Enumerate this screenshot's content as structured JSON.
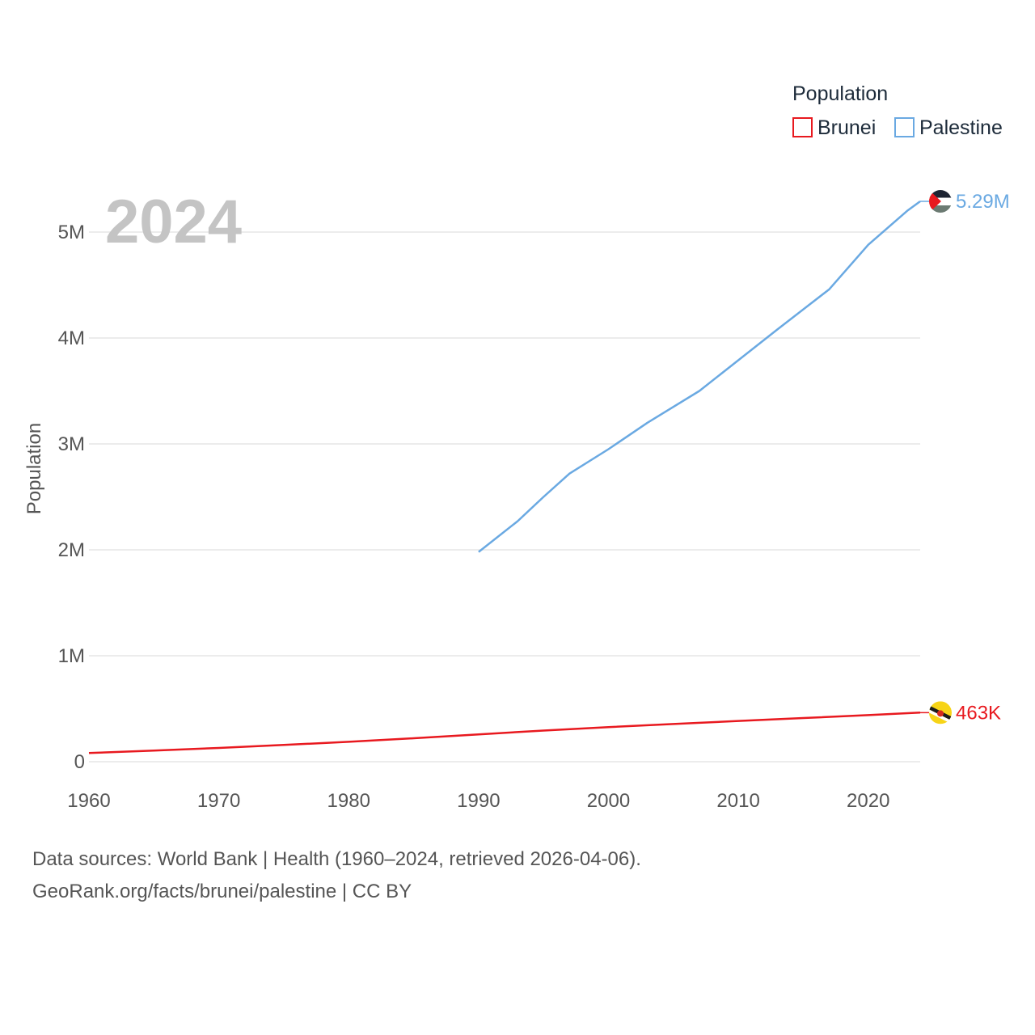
{
  "chart_data": {
    "type": "line",
    "highlight_year": "2024",
    "xlabel": "",
    "ylabel": "Population",
    "xlim": [
      1960,
      2024
    ],
    "ylim": [
      0,
      5000000
    ],
    "x_ticks": [
      1960,
      1970,
      1980,
      1990,
      2000,
      2010,
      2020
    ],
    "x_tick_labels": [
      "1960",
      "1970",
      "1980",
      "1990",
      "2000",
      "2010",
      "2020"
    ],
    "y_ticks": [
      0,
      1000000,
      2000000,
      3000000,
      4000000,
      5000000
    ],
    "y_tick_labels": [
      "0",
      "1M",
      "2M",
      "3M",
      "4M",
      "5M"
    ],
    "legend": {
      "title": "Population",
      "position": "top-right"
    },
    "series": [
      {
        "name": "Brunei",
        "color": "#e8191f",
        "end_label": "463K",
        "flag_icon": "brunei-flag-icon",
        "x": [
          1960,
          1965,
          1970,
          1975,
          1980,
          1985,
          1990,
          1995,
          2000,
          2005,
          2010,
          2015,
          2020,
          2024
        ],
        "values": [
          82000,
          105000,
          130000,
          158000,
          188000,
          221000,
          258000,
          294000,
          327000,
          356000,
          385000,
          412000,
          440000,
          463000
        ]
      },
      {
        "name": "Palestine",
        "color": "#6aa9e2",
        "end_label": "5.29M",
        "flag_icon": "palestine-flag-icon",
        "x": [
          1990,
          1993,
          1995,
          1997,
          2000,
          2003,
          2007,
          2010,
          2013,
          2017,
          2020,
          2023,
          2024
        ],
        "values": [
          1980000,
          2270000,
          2500000,
          2720000,
          2950000,
          3200000,
          3500000,
          3790000,
          4080000,
          4460000,
          4880000,
          5200000,
          5290000
        ]
      }
    ]
  },
  "source": {
    "line1": "Data sources: World Bank | Health (1960–2024, retrieved 2026-04-06).",
    "line2": "GeoRank.org/facts/brunei/palestine | CC BY"
  }
}
